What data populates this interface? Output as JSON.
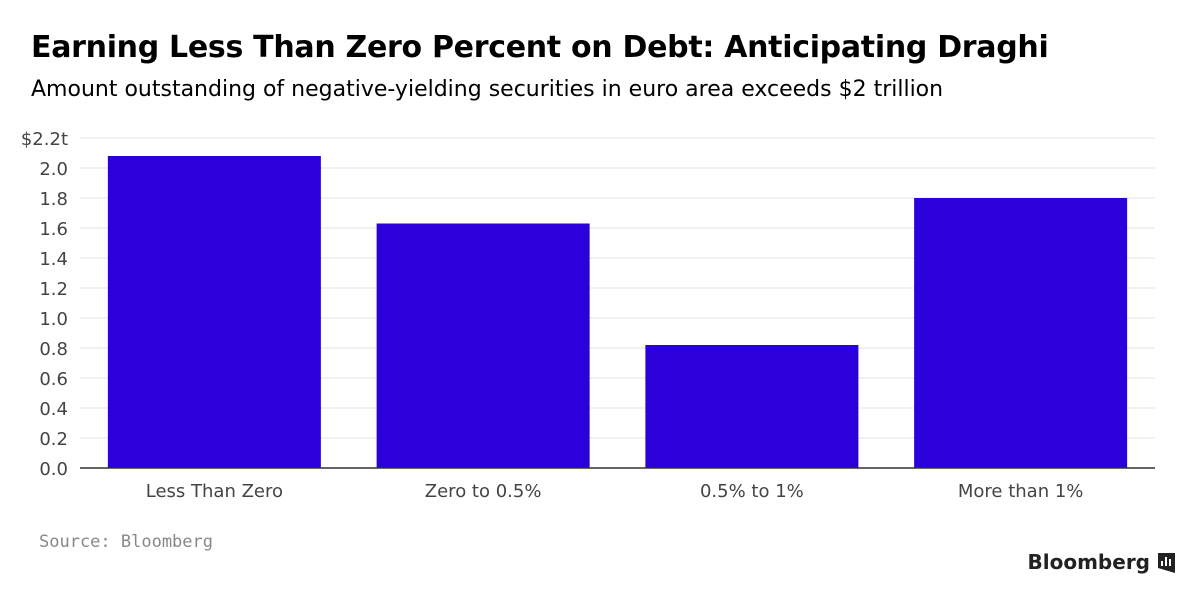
{
  "title": "Earning Less Than Zero Percent on Debt: Anticipating Draghi",
  "subtitle": "Amount outstanding of negative-yielding securities in euro area exceeds $2 trillion",
  "source": "Source: Bloomberg",
  "brand": "Bloomberg",
  "brand_icon": "bloomberg-chart-icon",
  "colors": {
    "bar": "#2b00db",
    "grid": "#e3e3e3",
    "axis": "#333333"
  },
  "chart_data": {
    "type": "bar",
    "categories": [
      "Less Than Zero",
      "Zero to 0.5%",
      "0.5% to 1%",
      "More than 1%"
    ],
    "values": [
      2.08,
      1.63,
      0.82,
      1.8
    ],
    "ylim": [
      0,
      2.2
    ],
    "yticks": [
      0,
      0.2,
      0.4,
      0.6,
      0.8,
      1.0,
      1.2,
      1.4,
      1.6,
      1.8,
      2.0,
      2.2
    ],
    "ytick_labels": [
      "0.0",
      "0.2",
      "0.4",
      "0.6",
      "0.8",
      "1.0",
      "1.2",
      "1.4",
      "1.6",
      "1.8",
      "2.0",
      "$2.2t"
    ],
    "grid": true,
    "legend": "none"
  }
}
